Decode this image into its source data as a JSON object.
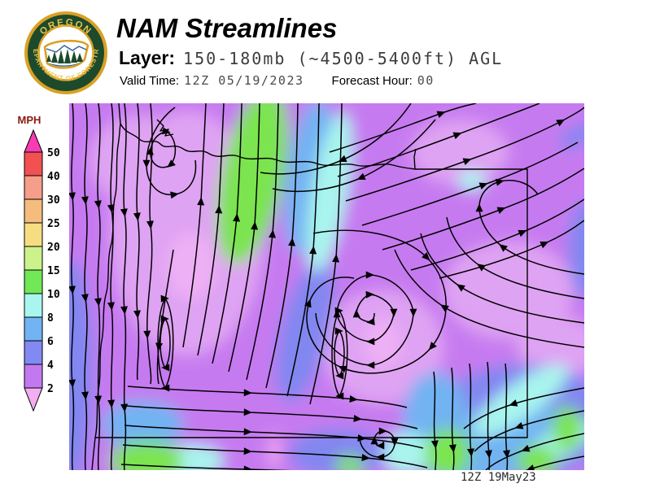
{
  "header": {
    "title": "NAM Streamlines",
    "layer_label": "Layer:",
    "layer_value": "150-180mb (~4500-5400ft) AGL",
    "valid_time_label": "Valid Time:",
    "valid_time_value": "12Z 05/19/2023",
    "forecast_hour_label": "Forecast Hour:",
    "forecast_hour_value": "00"
  },
  "logo": {
    "top_text": "OREGON",
    "bottom_text": "DEPARTMENT OF FORESTRY",
    "gold_color": "#d9a125",
    "green_color": "#1d4a2c"
  },
  "legend": {
    "units_label": "MPH",
    "ticks": [
      "50",
      "40",
      "30",
      "25",
      "20",
      "15",
      "10",
      "8",
      "6",
      "4",
      "2"
    ],
    "segment_colors": [
      "#f25151",
      "#f59e8a",
      "#f5bc7e",
      "#f7dd82",
      "#ccf28c",
      "#70e858",
      "#a9f6ef",
      "#72b3f2",
      "#8289f2",
      "#c279ef"
    ],
    "arrow_top_color": "#fa3cb4",
    "arrow_bottom_color": "#f2aeef"
  },
  "map": {
    "timestamp": "12Z 19May23",
    "field_colors": {
      "purple_2_4": "#c67af0",
      "lavender_low": "#dfa3f3",
      "pink_calm": "#f2a8f0",
      "periwinkle_4_6": "#8287f0",
      "light_blue_6_8": "#72b3f2",
      "cyan_8_10": "#a9f5ee",
      "green_10_15": "#7ce44f"
    }
  }
}
